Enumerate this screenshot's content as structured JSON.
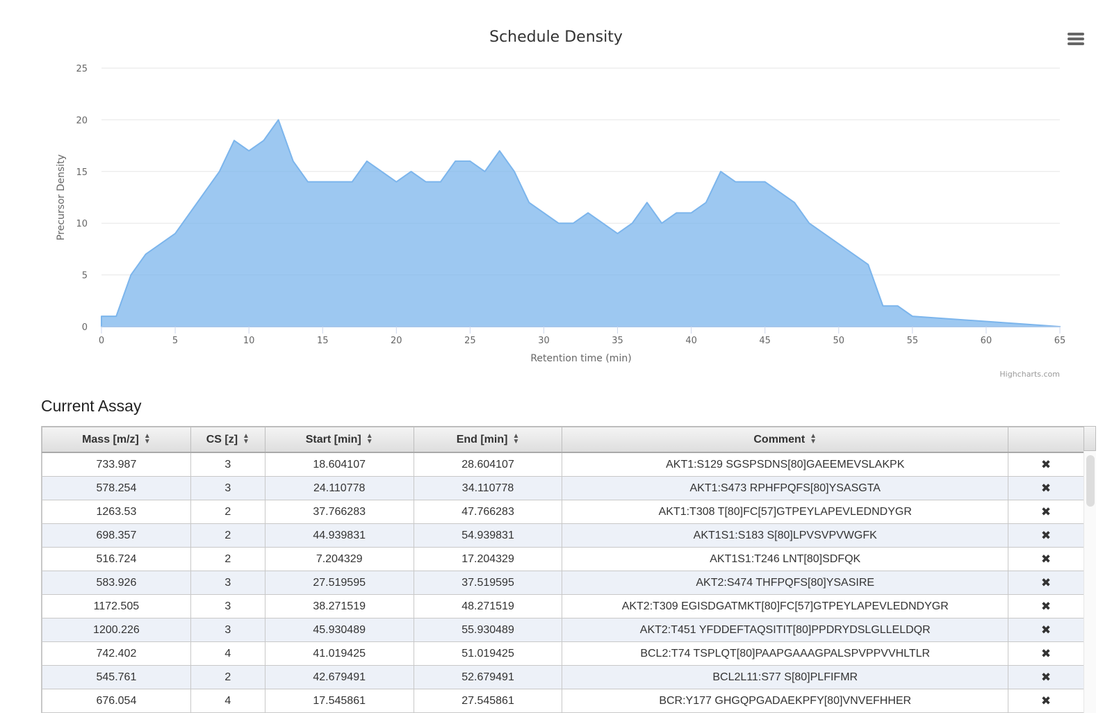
{
  "chart": {
    "title": "Schedule Density",
    "menu_icon": "hamburger-icon",
    "credits": "Highcharts.com"
  },
  "chart_data": {
    "type": "area",
    "title": "Schedule Density",
    "xlabel": "Retention time (min)",
    "ylabel": "Precursor Density",
    "xlim": [
      0,
      65
    ],
    "ylim": [
      0,
      25
    ],
    "x_ticks": [
      0,
      5,
      10,
      15,
      20,
      25,
      30,
      35,
      40,
      45,
      50,
      55,
      60,
      65
    ],
    "y_ticks": [
      0,
      5,
      10,
      15,
      20,
      25
    ],
    "grid": true,
    "legend": "none",
    "color": "#7cb5ec",
    "x": [
      0,
      1,
      2,
      3,
      4,
      5,
      6,
      7,
      8,
      9,
      10,
      11,
      12,
      13,
      14,
      15,
      16,
      17,
      18,
      19,
      20,
      21,
      22,
      23,
      24,
      25,
      26,
      27,
      28,
      29,
      30,
      31,
      32,
      33,
      34,
      35,
      36,
      37,
      38,
      39,
      40,
      41,
      42,
      43,
      44,
      45,
      46,
      47,
      48,
      49,
      50,
      51,
      52,
      53,
      54,
      55,
      65
    ],
    "y": [
      1,
      1,
      5,
      7,
      8,
      9,
      11,
      13,
      15,
      18,
      17,
      18,
      20,
      16,
      14,
      14,
      14,
      14,
      16,
      15,
      14,
      15,
      14,
      14,
      16,
      16,
      15,
      17,
      15,
      12,
      11,
      10,
      10,
      11,
      10,
      9,
      10,
      12,
      10,
      11,
      11,
      12,
      15,
      14,
      14,
      14,
      13,
      12,
      10,
      9,
      8,
      7,
      6,
      2,
      2,
      1,
      0
    ]
  },
  "assay": {
    "title": "Current Assay",
    "columns": [
      "Mass [m/z]",
      "CS [z]",
      "Start [min]",
      "End [min]",
      "Comment",
      ""
    ],
    "sort_icon": "sort-up-down-icon",
    "delete_icon": "close-x-icon",
    "delete_glyph": "✖",
    "rows": [
      [
        "733.987",
        "3",
        "18.604107",
        "28.604107",
        "AKT1:S129 SGSPSDNS[80]GAEEMEVSLAKPK"
      ],
      [
        "578.254",
        "3",
        "24.110778",
        "34.110778",
        "AKT1:S473 RPHFPQFS[80]YSASGTA"
      ],
      [
        "1263.53",
        "2",
        "37.766283",
        "47.766283",
        "AKT1:T308 T[80]FC[57]GTPEYLAPEVLEDNDYGR"
      ],
      [
        "698.357",
        "2",
        "44.939831",
        "54.939831",
        "AKT1S1:S183 S[80]LPVSVPVWGFK"
      ],
      [
        "516.724",
        "2",
        "7.204329",
        "17.204329",
        "AKT1S1:T246 LNT[80]SDFQK"
      ],
      [
        "583.926",
        "3",
        "27.519595",
        "37.519595",
        "AKT2:S474 THFPQFS[80]YSASIRE"
      ],
      [
        "1172.505",
        "3",
        "38.271519",
        "48.271519",
        "AKT2:T309 EGISDGATMKT[80]FC[57]GTPEYLAPEVLEDNDYGR"
      ],
      [
        "1200.226",
        "3",
        "45.930489",
        "55.930489",
        "AKT2:T451 YFDDEFTAQSITIT[80]PPDRYDSLGLLELDQR"
      ],
      [
        "742.402",
        "4",
        "41.019425",
        "51.019425",
        "BCL2:T74 TSPLQT[80]PAAPGAAAGPALSPVPPVVHLTLR"
      ],
      [
        "545.761",
        "2",
        "42.679491",
        "52.679491",
        "BCL2L11:S77 S[80]PLFIFMR"
      ],
      [
        "676.054",
        "4",
        "17.545861",
        "27.545861",
        "BCR:Y177 GHGQPGADAEKPFY[80]VNVEFHHER"
      ]
    ]
  }
}
